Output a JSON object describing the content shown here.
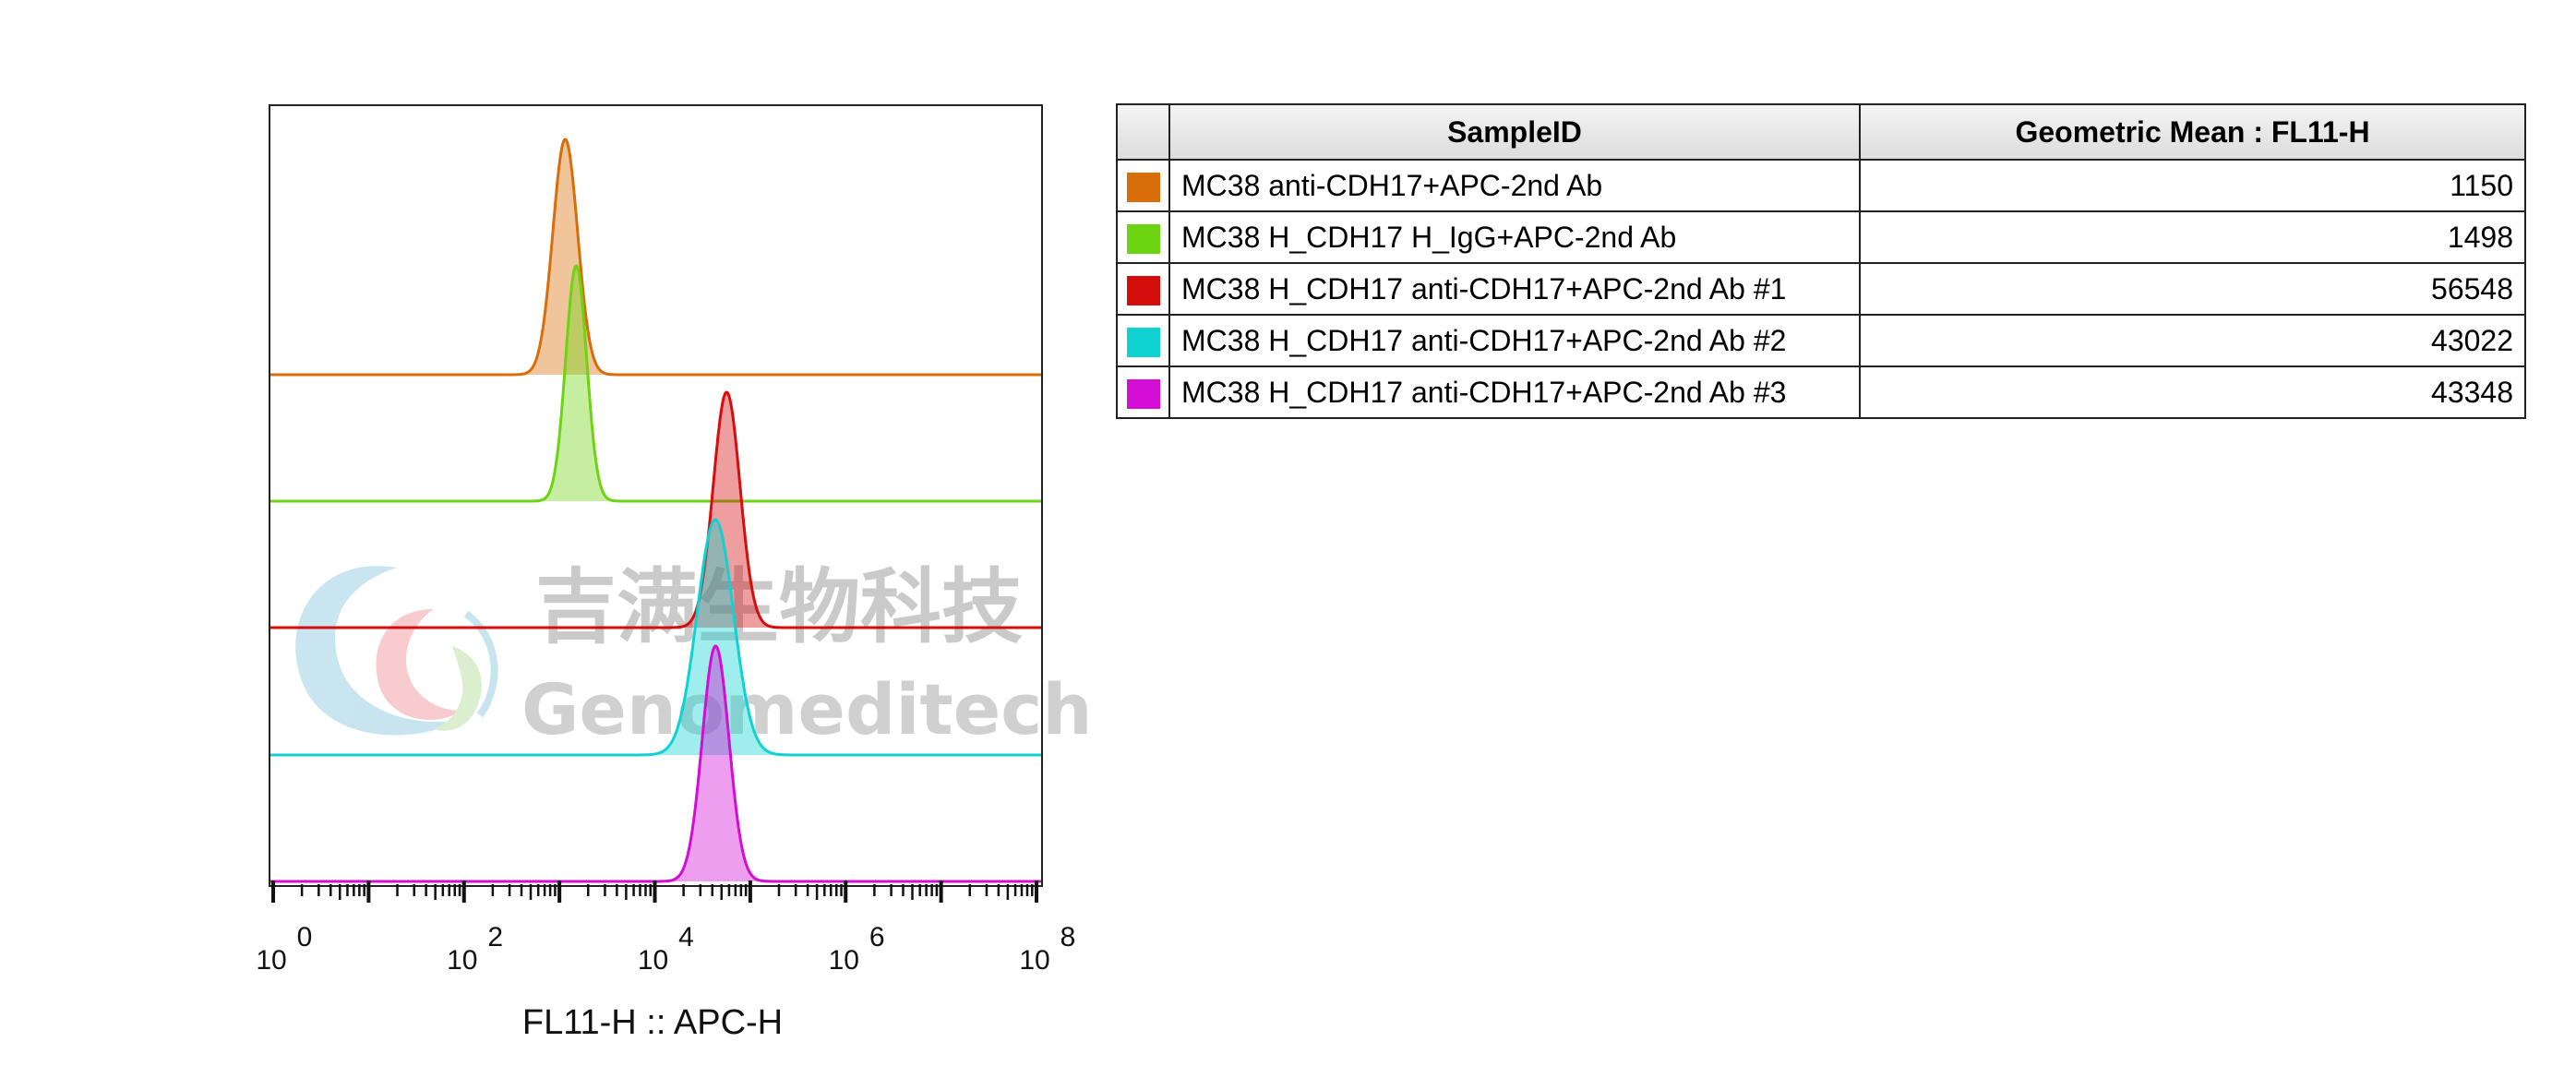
{
  "chart_data": {
    "type": "area",
    "subtype": "staggered-histogram-overlay",
    "xlabel": "FL11-H :: APC-H",
    "x_scale": "log",
    "xlim": [
      1,
      100000000
    ],
    "x_ticks": [
      {
        "base": "10",
        "exp": "0",
        "value": 1
      },
      {
        "base": "10",
        "exp": "2",
        "value": 100
      },
      {
        "base": "10",
        "exp": "4",
        "value": 10000
      },
      {
        "base": "10",
        "exp": "6",
        "value": 1000000
      },
      {
        "base": "10",
        "exp": "8",
        "value": 100000000
      }
    ],
    "grid": false,
    "series": [
      {
        "name": "MC38 anti-CDH17+APC-2nd Ab",
        "color": "#d96d07",
        "peak_x": 1150,
        "width_decades": 0.13,
        "height": 1.0
      },
      {
        "name": "MC38 H_CDH17 H_IgG+APC-2nd Ab",
        "color": "#6dd411",
        "peak_x": 1498,
        "width_decades": 0.11,
        "height": 1.0
      },
      {
        "name": "MC38 H_CDH17 anti-CDH17+APC-2nd Ab #1",
        "color": "#d40d0d",
        "peak_x": 56548,
        "width_decades": 0.14,
        "height": 1.0
      },
      {
        "name": "MC38 H_CDH17 anti-CDH17+APC-2nd Ab #2",
        "color": "#10d2d2",
        "peak_x": 43022,
        "width_decades": 0.19,
        "height": 1.0
      },
      {
        "name": "MC38 H_CDH17 anti-CDH17+APC-2nd Ab #3",
        "color": "#d40dd4",
        "peak_x": 43348,
        "width_decades": 0.14,
        "height": 1.0
      }
    ]
  },
  "table": {
    "headers": {
      "sample": "SampleID",
      "value": "Geometric Mean : FL11-H"
    },
    "rows": [
      {
        "color": "#d96d07",
        "sample": "MC38 anti-CDH17+APC-2nd Ab",
        "value": "1150"
      },
      {
        "color": "#6dd411",
        "sample": "MC38 H_CDH17 H_IgG+APC-2nd Ab",
        "value": "1498"
      },
      {
        "color": "#d40d0d",
        "sample": "MC38 H_CDH17 anti-CDH17+APC-2nd Ab #1",
        "value": "56548"
      },
      {
        "color": "#10d2d2",
        "sample": "MC38 H_CDH17 anti-CDH17+APC-2nd Ab #2",
        "value": "43022"
      },
      {
        "color": "#d40dd4",
        "sample": "MC38 H_CDH17 anti-CDH17+APC-2nd Ab #3",
        "value": "43348"
      }
    ]
  },
  "watermark": {
    "chinese": "吉满生物科技",
    "english": "Genomeditech"
  }
}
